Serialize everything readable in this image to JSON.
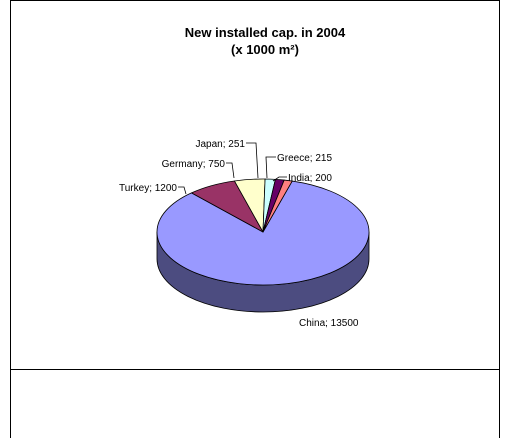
{
  "chart_data": {
    "type": "pie",
    "title": "New installed cap. in 2004",
    "subtitle": "(x 1000 m²)",
    "legend": "none",
    "slices": [
      {
        "label": "China",
        "value": 13500,
        "text": "China; 13500",
        "color": "#9999ff",
        "side": "#4c4c80"
      },
      {
        "label": "Turkey",
        "value": 1200,
        "text": "Turkey; 1200",
        "color": "#993366",
        "side": "#4d1a33"
      },
      {
        "label": "Germany",
        "value": 750,
        "text": "Germany; 750",
        "color": "#ffffcc",
        "side": "#808066"
      },
      {
        "label": "Japan",
        "value": 251,
        "text": "Japan; 251",
        "color": "#ccffff",
        "side": "#668080"
      },
      {
        "label": "Greece",
        "value": 215,
        "text": "Greece; 215",
        "color": "#660066",
        "side": "#330033"
      },
      {
        "label": "India",
        "value": 200,
        "text": "India; 200",
        "color": "#ff8080",
        "side": "#804040"
      }
    ]
  }
}
